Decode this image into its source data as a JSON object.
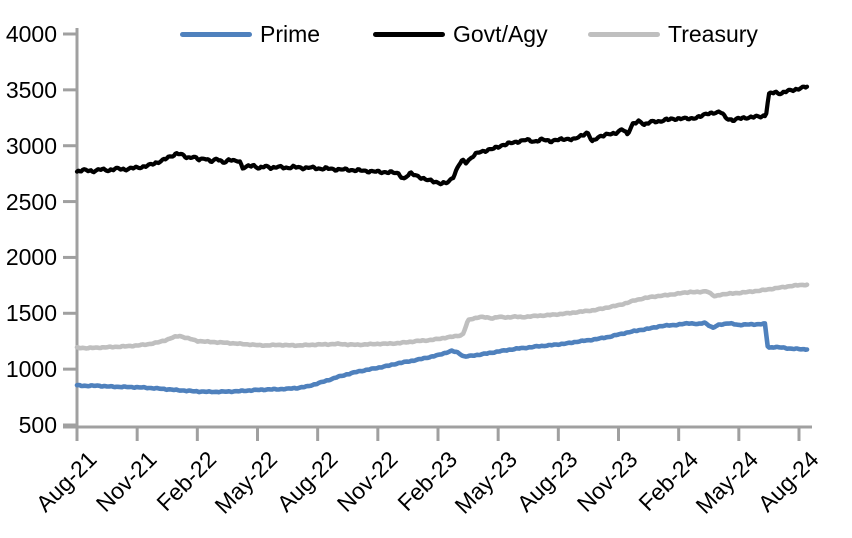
{
  "chart_data": {
    "type": "line",
    "x_axis": {
      "tick_labels": [
        "Aug-21",
        "Nov-21",
        "Feb-22",
        "May-22",
        "Aug-22",
        "Nov-22",
        "Feb-23",
        "May-23",
        "Aug-23",
        "Nov-23",
        "Feb-24",
        "May-24",
        "Aug-24"
      ],
      "tick_months": [
        0,
        3,
        6,
        9,
        12,
        15,
        18,
        21,
        24,
        27,
        30,
        33,
        36
      ],
      "range_months": [
        0,
        36.4
      ]
    },
    "y_axis": {
      "ticks": [
        500,
        1000,
        1500,
        2000,
        2500,
        3000,
        3500,
        4000
      ],
      "min": 500,
      "max": 4000
    },
    "grid": "off",
    "legend_position": "top",
    "axis_color": "#a0a0a0",
    "series": [
      {
        "name": "Prime",
        "color": "#4f81bd",
        "jitter": 5,
        "points": [
          [
            0,
            855
          ],
          [
            0.5,
            850
          ],
          [
            1,
            852
          ],
          [
            1.5,
            845
          ],
          [
            2,
            842
          ],
          [
            2.5,
            840
          ],
          [
            3,
            838
          ],
          [
            3.5,
            833
          ],
          [
            4,
            827
          ],
          [
            4.5,
            820
          ],
          [
            5,
            812
          ],
          [
            5.5,
            806
          ],
          [
            6,
            800
          ],
          [
            6.5,
            797
          ],
          [
            7,
            797
          ],
          [
            7.5,
            799
          ],
          [
            8,
            802
          ],
          [
            8.5,
            808
          ],
          [
            9,
            814
          ],
          [
            9.5,
            818
          ],
          [
            10,
            820
          ],
          [
            10.5,
            824
          ],
          [
            11,
            832
          ],
          [
            11.5,
            845
          ],
          [
            12,
            872
          ],
          [
            12.5,
            900
          ],
          [
            13,
            930
          ],
          [
            13.5,
            955
          ],
          [
            14,
            978
          ],
          [
            14.5,
            995
          ],
          [
            15,
            1012
          ],
          [
            15.5,
            1030
          ],
          [
            16,
            1052
          ],
          [
            16.5,
            1068
          ],
          [
            17,
            1085
          ],
          [
            17.5,
            1105
          ],
          [
            18,
            1125
          ],
          [
            18.4,
            1148
          ],
          [
            18.7,
            1163
          ],
          [
            19,
            1148
          ],
          [
            19.3,
            1112
          ],
          [
            19.6,
            1118
          ],
          [
            20,
            1128
          ],
          [
            20.5,
            1142
          ],
          [
            21,
            1158
          ],
          [
            21.5,
            1172
          ],
          [
            22,
            1185
          ],
          [
            22.5,
            1193
          ],
          [
            23,
            1205
          ],
          [
            23.5,
            1212
          ],
          [
            24,
            1222
          ],
          [
            24.5,
            1232
          ],
          [
            25,
            1248
          ],
          [
            25.5,
            1258
          ],
          [
            26,
            1272
          ],
          [
            26.5,
            1288
          ],
          [
            27,
            1310
          ],
          [
            27.5,
            1330
          ],
          [
            28,
            1348
          ],
          [
            28.5,
            1362
          ],
          [
            29,
            1382
          ],
          [
            29.5,
            1392
          ],
          [
            30,
            1398
          ],
          [
            30.5,
            1412
          ],
          [
            31,
            1402
          ],
          [
            31.3,
            1418
          ],
          [
            31.7,
            1368
          ],
          [
            32,
            1398
          ],
          [
            32.5,
            1410
          ],
          [
            33,
            1396
          ],
          [
            33.5,
            1400
          ],
          [
            34,
            1402
          ],
          [
            34.3,
            1406
          ],
          [
            34.45,
            1192
          ],
          [
            34.8,
            1198
          ],
          [
            35.2,
            1192
          ],
          [
            35.6,
            1183
          ],
          [
            36,
            1180
          ],
          [
            36.4,
            1176
          ]
        ]
      },
      {
        "name": "Govt/Agy",
        "color": "#000000",
        "jitter": 13,
        "points": [
          [
            0,
            2770
          ],
          [
            0.4,
            2782
          ],
          [
            0.8,
            2772
          ],
          [
            1.2,
            2788
          ],
          [
            1.6,
            2780
          ],
          [
            2,
            2795
          ],
          [
            2.4,
            2788
          ],
          [
            2.8,
            2800
          ],
          [
            3.2,
            2808
          ],
          [
            3.6,
            2825
          ],
          [
            4,
            2850
          ],
          [
            4.4,
            2880
          ],
          [
            4.8,
            2915
          ],
          [
            5,
            2935
          ],
          [
            5.2,
            2920
          ],
          [
            5.5,
            2890
          ],
          [
            5.8,
            2905
          ],
          [
            6.1,
            2870
          ],
          [
            6.4,
            2890
          ],
          [
            6.7,
            2858
          ],
          [
            7,
            2880
          ],
          [
            7.3,
            2852
          ],
          [
            7.6,
            2872
          ],
          [
            7.9,
            2862
          ],
          [
            8.1,
            2870
          ],
          [
            8.25,
            2800
          ],
          [
            8.5,
            2812
          ],
          [
            8.8,
            2825
          ],
          [
            9.1,
            2798
          ],
          [
            9.4,
            2815
          ],
          [
            9.7,
            2802
          ],
          [
            10,
            2812
          ],
          [
            10.4,
            2800
          ],
          [
            10.8,
            2812
          ],
          [
            11.2,
            2798
          ],
          [
            11.6,
            2808
          ],
          [
            12,
            2792
          ],
          [
            12.4,
            2800
          ],
          [
            12.8,
            2785
          ],
          [
            13.2,
            2792
          ],
          [
            13.6,
            2778
          ],
          [
            14,
            2785
          ],
          [
            14.4,
            2768
          ],
          [
            14.8,
            2775
          ],
          [
            15.2,
            2758
          ],
          [
            15.6,
            2768
          ],
          [
            16,
            2748
          ],
          [
            16.3,
            2705
          ],
          [
            16.6,
            2752
          ],
          [
            17,
            2728
          ],
          [
            17.4,
            2695
          ],
          [
            17.8,
            2682
          ],
          [
            18.2,
            2658
          ],
          [
            18.5,
            2672
          ],
          [
            18.8,
            2732
          ],
          [
            19,
            2815
          ],
          [
            19.2,
            2868
          ],
          [
            19.4,
            2850
          ],
          [
            19.7,
            2900
          ],
          [
            20,
            2938
          ],
          [
            20.4,
            2958
          ],
          [
            20.8,
            2975
          ],
          [
            21.2,
            3005
          ],
          [
            21.6,
            3022
          ],
          [
            22,
            3038
          ],
          [
            22.4,
            3052
          ],
          [
            22.8,
            3038
          ],
          [
            23.2,
            3055
          ],
          [
            23.6,
            3042
          ],
          [
            24,
            3052
          ],
          [
            24.4,
            3062
          ],
          [
            24.8,
            3055
          ],
          [
            25.2,
            3098
          ],
          [
            25.45,
            3118
          ],
          [
            25.7,
            3032
          ],
          [
            26,
            3082
          ],
          [
            26.4,
            3098
          ],
          [
            26.8,
            3110
          ],
          [
            27.2,
            3148
          ],
          [
            27.45,
            3098
          ],
          [
            27.7,
            3198
          ],
          [
            28,
            3218
          ],
          [
            28.3,
            3185
          ],
          [
            28.6,
            3222
          ],
          [
            29,
            3208
          ],
          [
            29.4,
            3242
          ],
          [
            29.8,
            3232
          ],
          [
            30.2,
            3252
          ],
          [
            30.6,
            3235
          ],
          [
            31,
            3262
          ],
          [
            31.4,
            3282
          ],
          [
            31.8,
            3298
          ],
          [
            32.1,
            3302
          ],
          [
            32.35,
            3248
          ],
          [
            32.7,
            3228
          ],
          [
            33,
            3242
          ],
          [
            33.4,
            3252
          ],
          [
            33.8,
            3258
          ],
          [
            34.1,
            3262
          ],
          [
            34.35,
            3272
          ],
          [
            34.5,
            3462
          ],
          [
            34.8,
            3478
          ],
          [
            35.1,
            3468
          ],
          [
            35.4,
            3488
          ],
          [
            35.7,
            3498
          ],
          [
            36,
            3512
          ],
          [
            36.4,
            3528
          ]
        ]
      },
      {
        "name": "Treasury",
        "color": "#bfbfbf",
        "jitter": 5,
        "points": [
          [
            0,
            1192
          ],
          [
            0.5,
            1188
          ],
          [
            1,
            1192
          ],
          [
            1.5,
            1196
          ],
          [
            2,
            1200
          ],
          [
            2.5,
            1205
          ],
          [
            3,
            1212
          ],
          [
            3.5,
            1222
          ],
          [
            4,
            1238
          ],
          [
            4.4,
            1258
          ],
          [
            4.8,
            1285
          ],
          [
            5.1,
            1298
          ],
          [
            5.4,
            1282
          ],
          [
            5.7,
            1268
          ],
          [
            6,
            1252
          ],
          [
            6.5,
            1245
          ],
          [
            7,
            1240
          ],
          [
            7.5,
            1235
          ],
          [
            8,
            1228
          ],
          [
            8.5,
            1222
          ],
          [
            9,
            1215
          ],
          [
            9.5,
            1212
          ],
          [
            10,
            1218
          ],
          [
            10.5,
            1214
          ],
          [
            11,
            1212
          ],
          [
            11.5,
            1216
          ],
          [
            12,
            1220
          ],
          [
            12.5,
            1222
          ],
          [
            13,
            1226
          ],
          [
            13.5,
            1220
          ],
          [
            14,
            1218
          ],
          [
            14.5,
            1222
          ],
          [
            15,
            1226
          ],
          [
            15.5,
            1228
          ],
          [
            16,
            1232
          ],
          [
            16.5,
            1242
          ],
          [
            17,
            1252
          ],
          [
            17.5,
            1258
          ],
          [
            18,
            1270
          ],
          [
            18.5,
            1285
          ],
          [
            18.8,
            1292
          ],
          [
            19.1,
            1302
          ],
          [
            19.25,
            1315
          ],
          [
            19.5,
            1438
          ],
          [
            19.8,
            1455
          ],
          [
            20.1,
            1468
          ],
          [
            20.4,
            1462
          ],
          [
            20.7,
            1455
          ],
          [
            21,
            1468
          ],
          [
            21.4,
            1462
          ],
          [
            21.8,
            1470
          ],
          [
            22.2,
            1465
          ],
          [
            22.6,
            1472
          ],
          [
            23,
            1478
          ],
          [
            23.4,
            1482
          ],
          [
            23.8,
            1488
          ],
          [
            24.2,
            1495
          ],
          [
            24.6,
            1502
          ],
          [
            25,
            1512
          ],
          [
            25.4,
            1520
          ],
          [
            25.8,
            1528
          ],
          [
            26.2,
            1542
          ],
          [
            26.6,
            1558
          ],
          [
            27,
            1572
          ],
          [
            27.4,
            1592
          ],
          [
            27.8,
            1615
          ],
          [
            28.2,
            1632
          ],
          [
            28.6,
            1645
          ],
          [
            29,
            1655
          ],
          [
            29.4,
            1662
          ],
          [
            29.8,
            1672
          ],
          [
            30.2,
            1682
          ],
          [
            30.6,
            1692
          ],
          [
            31,
            1688
          ],
          [
            31.4,
            1700
          ],
          [
            31.8,
            1650
          ],
          [
            32.1,
            1668
          ],
          [
            32.5,
            1675
          ],
          [
            33,
            1682
          ],
          [
            33.5,
            1692
          ],
          [
            34,
            1702
          ],
          [
            34.5,
            1715
          ],
          [
            35,
            1728
          ],
          [
            35.5,
            1742
          ],
          [
            36,
            1752
          ],
          [
            36.4,
            1756
          ]
        ]
      }
    ]
  }
}
